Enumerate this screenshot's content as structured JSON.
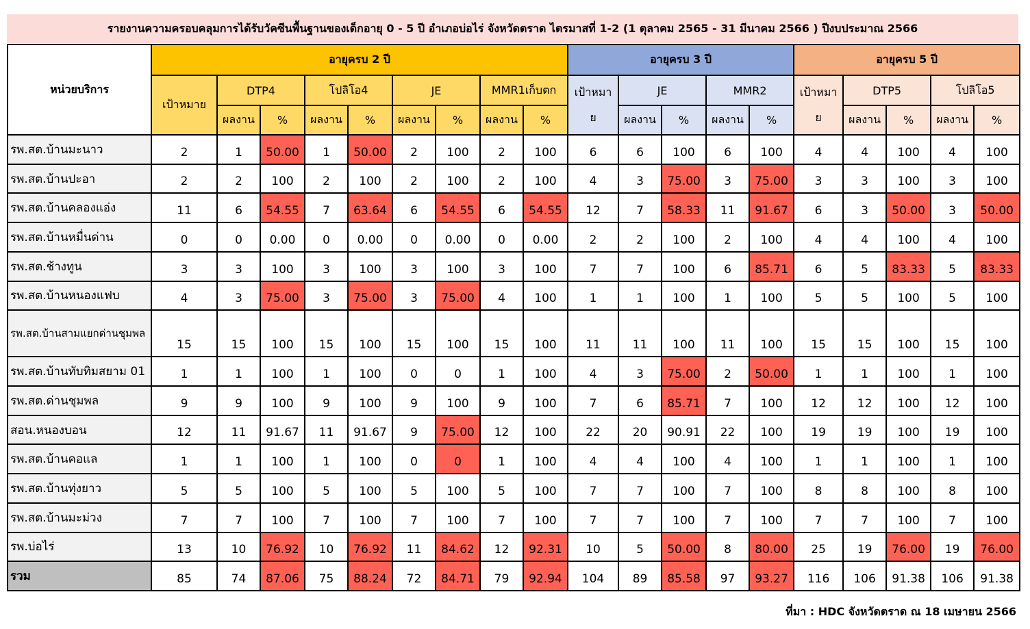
{
  "title": "รายงานความครอบคลุมการได้รับวัคซีนพื้นฐานของเด็กอายุ 0 - 5 ปี อำเภอบ่อไร่ จังหวัดตราด ไตรมาสที่ 1-2 (1 ตุลาคม 2565 - 31 มีนาคม 2566 ) ปีงบประมาณ 2566",
  "header": {
    "unit": "หน่วยบริการ",
    "age2": "อายุครบ 2 ปี",
    "age3": "อายุครบ 3 ปี",
    "age5": "อายุครบ 5 ปี",
    "target": "เป้าหมาย",
    "target_split_1": "เป้าหมา",
    "target_split_2": "ย",
    "dtp4": "DTP4",
    "polio4": "โปลิโอ4",
    "je": "JE",
    "mmr1": "MMR1เก็บตก",
    "mmr2": "MMR2",
    "dtp5": "DTP5",
    "polio5": "โปลิโอ5",
    "result": "ผลงาน",
    "pct": "%"
  },
  "highlight_color": "#ff6254",
  "rows": [
    {
      "name": "รพ.สต.บ้านมะนาว",
      "cells": [
        "2",
        "1",
        "50.00",
        "1",
        "50.00",
        "2",
        "100",
        "2",
        "100",
        "6",
        "6",
        "100",
        "6",
        "100",
        "4",
        "4",
        "100",
        "4",
        "100"
      ],
      "red": [
        2,
        4
      ]
    },
    {
      "name": "รพ.สต.บ้านปะอา",
      "cells": [
        "2",
        "2",
        "100",
        "2",
        "100",
        "2",
        "100",
        "2",
        "100",
        "4",
        "3",
        "75.00",
        "3",
        "75.00",
        "3",
        "3",
        "100",
        "3",
        "100"
      ],
      "red": [
        11,
        13
      ]
    },
    {
      "name": "รพ.สต.บ้านคลองแอ่ง",
      "cells": [
        "11",
        "6",
        "54.55",
        "7",
        "63.64",
        "6",
        "54.55",
        "6",
        "54.55",
        "12",
        "7",
        "58.33",
        "11",
        "91.67",
        "6",
        "3",
        "50.00",
        "3",
        "50.00"
      ],
      "red": [
        2,
        4,
        6,
        8,
        11,
        13,
        16,
        18
      ]
    },
    {
      "name": "รพ.สต.บ้านหมื่นด่าน",
      "cells": [
        "0",
        "0",
        "0.00",
        "0",
        "0.00",
        "0",
        "0.00",
        "0",
        "0.00",
        "2",
        "2",
        "100",
        "2",
        "100",
        "4",
        "4",
        "100",
        "4",
        "100"
      ],
      "red": []
    },
    {
      "name": "รพ.สต.ช้างทูน",
      "cells": [
        "3",
        "3",
        "100",
        "3",
        "100",
        "3",
        "100",
        "3",
        "100",
        "7",
        "7",
        "100",
        "6",
        "85.71",
        "6",
        "5",
        "83.33",
        "5",
        "83.33"
      ],
      "red": [
        13,
        16,
        18
      ]
    },
    {
      "name": "รพ.สต.บ้านหนองแฟบ",
      "cells": [
        "4",
        "3",
        "75.00",
        "3",
        "75.00",
        "3",
        "75.00",
        "4",
        "100",
        "1",
        "1",
        "100",
        "1",
        "100",
        "5",
        "5",
        "100",
        "5",
        "100"
      ],
      "red": [
        2,
        4,
        6
      ]
    },
    {
      "name": "รพ.สต.บ้านสามแยกด่านชุมพล",
      "cells": [
        "15",
        "15",
        "100",
        "15",
        "100",
        "15",
        "100",
        "15",
        "100",
        "11",
        "11",
        "100",
        "11",
        "100",
        "15",
        "15",
        "100",
        "15",
        "100"
      ],
      "red": []
    },
    {
      "name": "รพ.สต.บ้านทับทิมสยาม 01",
      "cells": [
        "1",
        "1",
        "100",
        "1",
        "100",
        "0",
        "0",
        "1",
        "100",
        "4",
        "3",
        "75.00",
        "2",
        "50.00",
        "1",
        "1",
        "100",
        "1",
        "100"
      ],
      "red": [
        11,
        13
      ]
    },
    {
      "name": "รพ.สต.ด่านชุมพล",
      "cells": [
        "9",
        "9",
        "100",
        "9",
        "100",
        "9",
        "100",
        "9",
        "100",
        "7",
        "6",
        "85.71",
        "7",
        "100",
        "12",
        "12",
        "100",
        "12",
        "100"
      ],
      "red": [
        11
      ]
    },
    {
      "name": "สอน.หนองบอน",
      "cells": [
        "12",
        "11",
        "91.67",
        "11",
        "91.67",
        "9",
        "75.00",
        "12",
        "100",
        "22",
        "20",
        "90.91",
        "22",
        "100",
        "19",
        "19",
        "100",
        "19",
        "100"
      ],
      "red": [
        6
      ]
    },
    {
      "name": "รพ.สต.บ้านคอแล",
      "cells": [
        "1",
        "1",
        "100",
        "1",
        "100",
        "0",
        "0",
        "1",
        "100",
        "4",
        "4",
        "100",
        "4",
        "100",
        "1",
        "1",
        "100",
        "1",
        "100"
      ],
      "red": [
        6
      ]
    },
    {
      "name": "รพ.สต.บ้านทุ่งยาว",
      "cells": [
        "5",
        "5",
        "100",
        "5",
        "100",
        "5",
        "100",
        "5",
        "100",
        "7",
        "7",
        "100",
        "7",
        "100",
        "8",
        "8",
        "100",
        "8",
        "100"
      ],
      "red": []
    },
    {
      "name": "รพ.สต.บ้านมะม่วง",
      "cells": [
        "7",
        "7",
        "100",
        "7",
        "100",
        "7",
        "100",
        "7",
        "100",
        "7",
        "7",
        "100",
        "7",
        "100",
        "7",
        "7",
        "100",
        "7",
        "100"
      ],
      "red": []
    },
    {
      "name": "รพ.บ่อไร่",
      "cells": [
        "13",
        "10",
        "76.92",
        "10",
        "76.92",
        "11",
        "84.62",
        "12",
        "92.31",
        "10",
        "5",
        "50.00",
        "8",
        "80.00",
        "25",
        "19",
        "76.00",
        "19",
        "76.00"
      ],
      "red": [
        2,
        4,
        6,
        8,
        11,
        13,
        16,
        18
      ]
    },
    {
      "name": "รวม",
      "cells": [
        "85",
        "74",
        "87.06",
        "75",
        "88.24",
        "72",
        "84.71",
        "79",
        "92.94",
        "104",
        "89",
        "85.58",
        "97",
        "93.27",
        "116",
        "106",
        "91.38",
        "106",
        "91.38"
      ],
      "red": [
        2,
        4,
        6,
        8,
        11,
        13
      ]
    }
  ],
  "source": "ที่มา : HDC จังหวัดตราด ณ 18 เมษายน 2566"
}
